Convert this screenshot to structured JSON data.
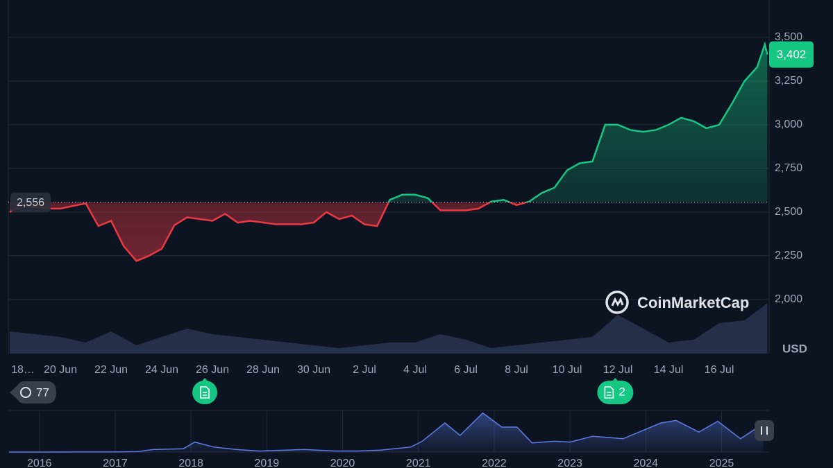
{
  "chart_data": [
    {
      "type": "line",
      "x": [
        0,
        0.5,
        1,
        1.5,
        2,
        2.5,
        3,
        3.5,
        4,
        4.5,
        5,
        5.5,
        6,
        6.5,
        7,
        7.5,
        8,
        8.5,
        9,
        9.5,
        10,
        10.5,
        11,
        11.5,
        12,
        12.5,
        13,
        13.5,
        14,
        14.5,
        15,
        15.5,
        16,
        16.5,
        17,
        17.5,
        18,
        18.5,
        19,
        19.5,
        20,
        20.5,
        21,
        21.5,
        22,
        22.5,
        23,
        23.5,
        24,
        24.5,
        25,
        25.5,
        26,
        26.5,
        27,
        27.5,
        28,
        28.5,
        29,
        29.5,
        29.8,
        29.9
      ],
      "values": [
        2500,
        2540,
        2530,
        2520,
        2520,
        2535,
        2550,
        2420,
        2450,
        2305,
        2220,
        2250,
        2290,
        2425,
        2470,
        2460,
        2450,
        2490,
        2440,
        2450,
        2440,
        2430,
        2430,
        2430,
        2440,
        2500,
        2460,
        2480,
        2430,
        2420,
        2570,
        2600,
        2600,
        2580,
        2510,
        2510,
        2510,
        2520,
        2560,
        2570,
        2540,
        2560,
        2610,
        2640,
        2740,
        2780,
        2790,
        3000,
        3000,
        2970,
        2960,
        2970,
        3000,
        3040,
        3020,
        2980,
        3000,
        3120,
        3250,
        3330,
        3460,
        3402
      ],
      "color_up": "#16c784",
      "color_down": "#ea3943",
      "xlim": [
        0,
        29.9
      ],
      "xticks": [
        {
          "value": 0,
          "label": "18…"
        },
        {
          "value": 2,
          "label": "20 Jun"
        },
        {
          "value": 4,
          "label": "22 Jun"
        },
        {
          "value": 6,
          "label": "24 Jun"
        },
        {
          "value": 8,
          "label": "26 Jun"
        },
        {
          "value": 10,
          "label": "28 Jun"
        },
        {
          "value": 12,
          "label": "30 Jun"
        },
        {
          "value": 14,
          "label": "2 Jul"
        },
        {
          "value": 16,
          "label": "4 Jul"
        },
        {
          "value": 18,
          "label": "6 Jul"
        },
        {
          "value": 20,
          "label": "8 Jul"
        },
        {
          "value": 22,
          "label": "10 Jul"
        },
        {
          "value": 24,
          "label": "12 Jul"
        },
        {
          "value": 26,
          "label": "14 Jul"
        },
        {
          "value": 28,
          "label": "16 Jul"
        }
      ],
      "ylim": [
        1690,
        3714
      ],
      "yticks": [
        {
          "value": 2000,
          "label": "2,000"
        },
        {
          "value": 2250,
          "label": "2,250"
        },
        {
          "value": 2500,
          "label": "2,500"
        },
        {
          "value": 2750,
          "label": "2,750"
        },
        {
          "value": 3000,
          "label": "3,000"
        },
        {
          "value": 3250,
          "label": "3,250"
        },
        {
          "value": 3500,
          "label": "3,500"
        }
      ],
      "grid": true,
      "reference_line": {
        "value": 2556,
        "label": "2,556"
      },
      "last_price": {
        "value": 3402,
        "label": "3,402"
      },
      "currency": "USD",
      "watermark": "CoinMarketCap",
      "volume": {
        "color": "#2b3450",
        "x": [
          0,
          1,
          2,
          3,
          4,
          5,
          6,
          7,
          8,
          9,
          10,
          11,
          12,
          13,
          14,
          15,
          16,
          17,
          18,
          19,
          20,
          21,
          22,
          23,
          24,
          25,
          26,
          27,
          28,
          29,
          29.9
        ],
        "values": [
          40,
          35,
          30,
          20,
          40,
          15,
          30,
          45,
          35,
          30,
          25,
          20,
          15,
          10,
          15,
          20,
          20,
          35,
          25,
          10,
          15,
          20,
          25,
          30,
          70,
          45,
          20,
          25,
          55,
          60,
          91
        ],
        "lim": [
          0,
          100
        ]
      },
      "events": [
        {
          "x": 7.7
        },
        {
          "x": 23.9,
          "count": 2
        }
      ],
      "history_count": 77
    },
    {
      "type": "area",
      "x": [
        2015.6,
        2016,
        2016.5,
        2017,
        2017.3,
        2017.5,
        2017.9,
        2018.05,
        2018.3,
        2018.6,
        2018.9,
        2019.5,
        2019.9,
        2020.2,
        2020.5,
        2020.9,
        2021.05,
        2021.35,
        2021.55,
        2021.85,
        2022.1,
        2022.3,
        2022.5,
        2022.8,
        2023,
        2023.3,
        2023.7,
        2024.2,
        2024.4,
        2024.7,
        2024.95,
        2025.25,
        2025.4,
        2025.55
      ],
      "values": [
        1,
        1,
        12,
        10,
        50,
        300,
        400,
        1200,
        600,
        300,
        120,
        300,
        130,
        120,
        230,
        600,
        1300,
        3500,
        2000,
        4700,
        3000,
        3000,
        1100,
        1300,
        1200,
        1900,
        1600,
        3500,
        3800,
        2400,
        3700,
        1600,
        2500,
        3400
      ],
      "color": "#5b7ce8",
      "xlim": [
        2015.59,
        2025.6
      ],
      "xticks": [
        2016,
        2017,
        2018,
        2019,
        2020,
        2021,
        2022,
        2023,
        2024,
        2025
      ],
      "ylim": [
        0,
        5000
      ]
    }
  ]
}
